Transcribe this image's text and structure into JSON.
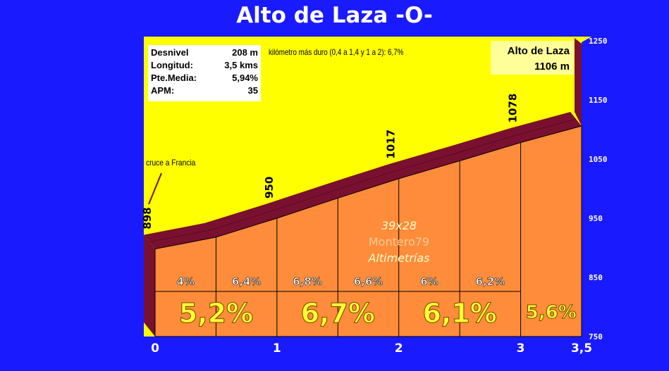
{
  "title": "Alto de Laza -O-",
  "stats": [
    {
      "label": "Desnivel",
      "value": "208 m"
    },
    {
      "label": "Longitud:",
      "value": "3,5 kms"
    },
    {
      "label": "Pte.Media:",
      "value": "5,94%"
    },
    {
      "label": "APM:",
      "value": "35"
    }
  ],
  "hardest_km_note": "kilómetro más duro (0,4 a 1,4 y 1 a 2):   6,7%",
  "summit": {
    "name": "Alto de Laza",
    "altitude": "1106 m"
  },
  "cruce_label": "cruce a Francia",
  "watermark": {
    "line1": "39x28",
    "line2": "Montero79",
    "line3": "Altimetrías"
  },
  "colors": {
    "background": "#1a1aff",
    "sky": "#ffff00",
    "profile_fill": "#ff8c3a",
    "profile_top": "#7a1030",
    "km_text": "#ffff33"
  },
  "chart_data": {
    "type": "area",
    "title": "Alto de Laza -O-",
    "xlabel": "",
    "ylabel": "",
    "x_ticks": [
      "0",
      "1",
      "2",
      "3",
      "3,5"
    ],
    "y_ticks": [
      "750",
      "850",
      "950",
      "1050",
      "1150",
      "1250"
    ],
    "xlim": [
      0,
      3.5
    ],
    "ylim": [
      750,
      1250
    ],
    "profile": [
      {
        "x": 0,
        "y": 898
      },
      {
        "x": 0.5,
        "y": 918
      },
      {
        "x": 1,
        "y": 950
      },
      {
        "x": 1.5,
        "y": 984
      },
      {
        "x": 2,
        "y": 1017
      },
      {
        "x": 2.5,
        "y": 1047
      },
      {
        "x": 3,
        "y": 1078
      },
      {
        "x": 3.5,
        "y": 1106
      }
    ],
    "altitude_labels": [
      {
        "x": 0,
        "label": "898"
      },
      {
        "x": 1,
        "label": "950"
      },
      {
        "x": 2,
        "label": "1017"
      },
      {
        "x": 3,
        "label": "1078"
      }
    ],
    "half_km_gradients": [
      {
        "x0": 0,
        "x1": 0.5,
        "label": "4%"
      },
      {
        "x0": 0.5,
        "x1": 1,
        "label": "6,4%"
      },
      {
        "x0": 1,
        "x1": 1.5,
        "label": "6,8%"
      },
      {
        "x0": 1.5,
        "x1": 2,
        "label": "6,6%"
      },
      {
        "x0": 2,
        "x1": 2.5,
        "label": "6%"
      },
      {
        "x0": 2.5,
        "x1": 3,
        "label": "6,2%"
      }
    ],
    "km_gradients": [
      {
        "x0": 0,
        "x1": 1,
        "label": "5,2%"
      },
      {
        "x0": 1,
        "x1": 2,
        "label": "6,7%"
      },
      {
        "x0": 2,
        "x1": 3,
        "label": "6,1%"
      },
      {
        "x0": 3,
        "x1": 3.5,
        "label": "5,6%"
      }
    ]
  }
}
